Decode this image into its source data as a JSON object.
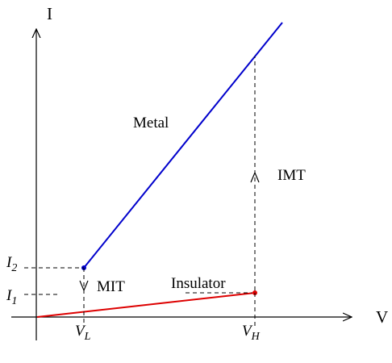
{
  "axes": {
    "y_label": "I",
    "x_label": "V"
  },
  "curves": {
    "metal": {
      "label": "Metal",
      "color": "#0000cc"
    },
    "insulator": {
      "label": "Insulator",
      "color": "#dd0000"
    }
  },
  "transitions": {
    "imt": {
      "label": "IMT"
    },
    "mit": {
      "label": "MIT"
    }
  },
  "ticks": {
    "v_low": {
      "main": "V",
      "sub": "L"
    },
    "v_high": {
      "main": "V",
      "sub": "H"
    },
    "i_two": {
      "main": "I",
      "sub": "2"
    },
    "i_one": {
      "main": "I",
      "sub": "1"
    }
  }
}
